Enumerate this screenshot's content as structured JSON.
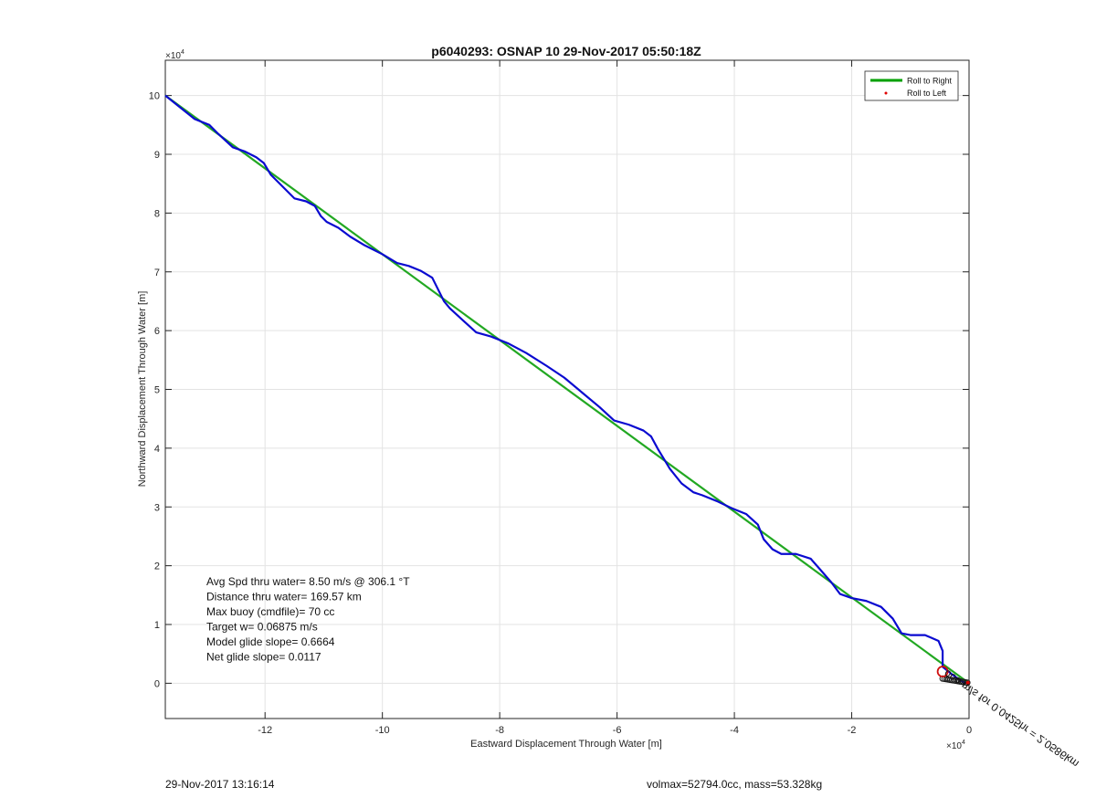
{
  "chart_data": {
    "type": "line",
    "title": "p6040293: OSNAP 10 29-Nov-2017 05:50:18Z",
    "xlabel": "Eastward Displacement Through Water [m]",
    "ylabel": "Northward Displacement Through Water [m]",
    "x_exponent_label": "10",
    "x_exponent_power": "4",
    "y_exponent_label": "10",
    "y_exponent_power": "4",
    "xlim": [
      -13.7,
      0
    ],
    "ylim": [
      -0.6,
      10.6
    ],
    "x_ticks": [
      -12,
      -10,
      -8,
      -6,
      -4,
      -2,
      0
    ],
    "y_ticks": [
      0,
      1,
      2,
      3,
      4,
      5,
      6,
      7,
      8,
      9,
      10
    ],
    "grid": true,
    "legend_position": "top-right",
    "legend": [
      {
        "label": "Roll to Right",
        "color": "#00a000",
        "style": "line"
      },
      {
        "label": "Roll to Left",
        "color": "#e00000",
        "style": "dot"
      }
    ],
    "series": [
      {
        "name": "Roll to Right",
        "color": "#22a822",
        "x": [
          -13.7,
          0
        ],
        "y": [
          10.0,
          0.0
        ]
      },
      {
        "color": "#0a0ad0",
        "x": [
          -13.7,
          -13.45,
          -13.2,
          -12.95,
          -12.8,
          -12.55,
          -12.35,
          -12.15,
          -12.02,
          -11.9,
          -11.7,
          -11.5,
          -11.3,
          -11.15,
          -11.05,
          -10.95,
          -10.75,
          -10.55,
          -10.3,
          -10.0,
          -9.75,
          -9.55,
          -9.35,
          -9.15,
          -9.05,
          -8.95,
          -8.85,
          -8.6,
          -8.4,
          -8.15,
          -7.85,
          -7.55,
          -7.2,
          -6.9,
          -6.6,
          -6.3,
          -6.05,
          -5.8,
          -5.55,
          -5.42,
          -5.3,
          -5.1,
          -4.9,
          -4.7,
          -4.55,
          -4.3,
          -4.05,
          -3.8,
          -3.6,
          -3.5,
          -3.35,
          -3.2,
          -2.95,
          -2.7,
          -2.55,
          -2.35,
          -2.2,
          -2.0,
          -1.75,
          -1.5,
          -1.3,
          -1.15,
          -1.0,
          -0.75,
          -0.52,
          -0.45,
          -0.45,
          -0.3,
          -0.15,
          -0.05
        ],
        "y": [
          10.0,
          9.8,
          9.6,
          9.5,
          9.35,
          9.12,
          9.05,
          8.95,
          8.85,
          8.65,
          8.45,
          8.25,
          8.2,
          8.12,
          7.95,
          7.85,
          7.75,
          7.6,
          7.45,
          7.3,
          7.15,
          7.1,
          7.02,
          6.9,
          6.7,
          6.5,
          6.38,
          6.15,
          5.97,
          5.9,
          5.78,
          5.62,
          5.4,
          5.2,
          4.95,
          4.7,
          4.47,
          4.4,
          4.3,
          4.2,
          3.98,
          3.65,
          3.4,
          3.25,
          3.2,
          3.1,
          2.98,
          2.88,
          2.7,
          2.45,
          2.28,
          2.2,
          2.2,
          2.12,
          1.95,
          1.72,
          1.52,
          1.45,
          1.4,
          1.3,
          1.1,
          0.85,
          0.82,
          0.82,
          0.72,
          0.55,
          0.28,
          0.16,
          0.05,
          0.0
        ]
      },
      {
        "color": "#d01010",
        "x": [
          -0.45
        ],
        "y": [
          0.2
        ]
      }
    ],
    "annotations": [
      {
        "text": "Avg Spd thru water=  8.50 m/s @ 306.1 °T"
      },
      {
        "text": "Distance thru water= 169.57 km"
      },
      {
        "text": "Max buoy (cmdfile)= 70 cc"
      },
      {
        "text": "Target w= 0.06875 m/s"
      },
      {
        "text": "Model glide slope= 0.6664"
      },
      {
        "text": "Net glide slope= 0.0117"
      }
    ],
    "rotated_label": "ooo m/s for 0.0425hr = 2.0586km"
  },
  "footer": {
    "timestamp": "29-Nov-2017 13:16:14",
    "info": "volmax=52794.0cc, mass=53.328kg"
  }
}
